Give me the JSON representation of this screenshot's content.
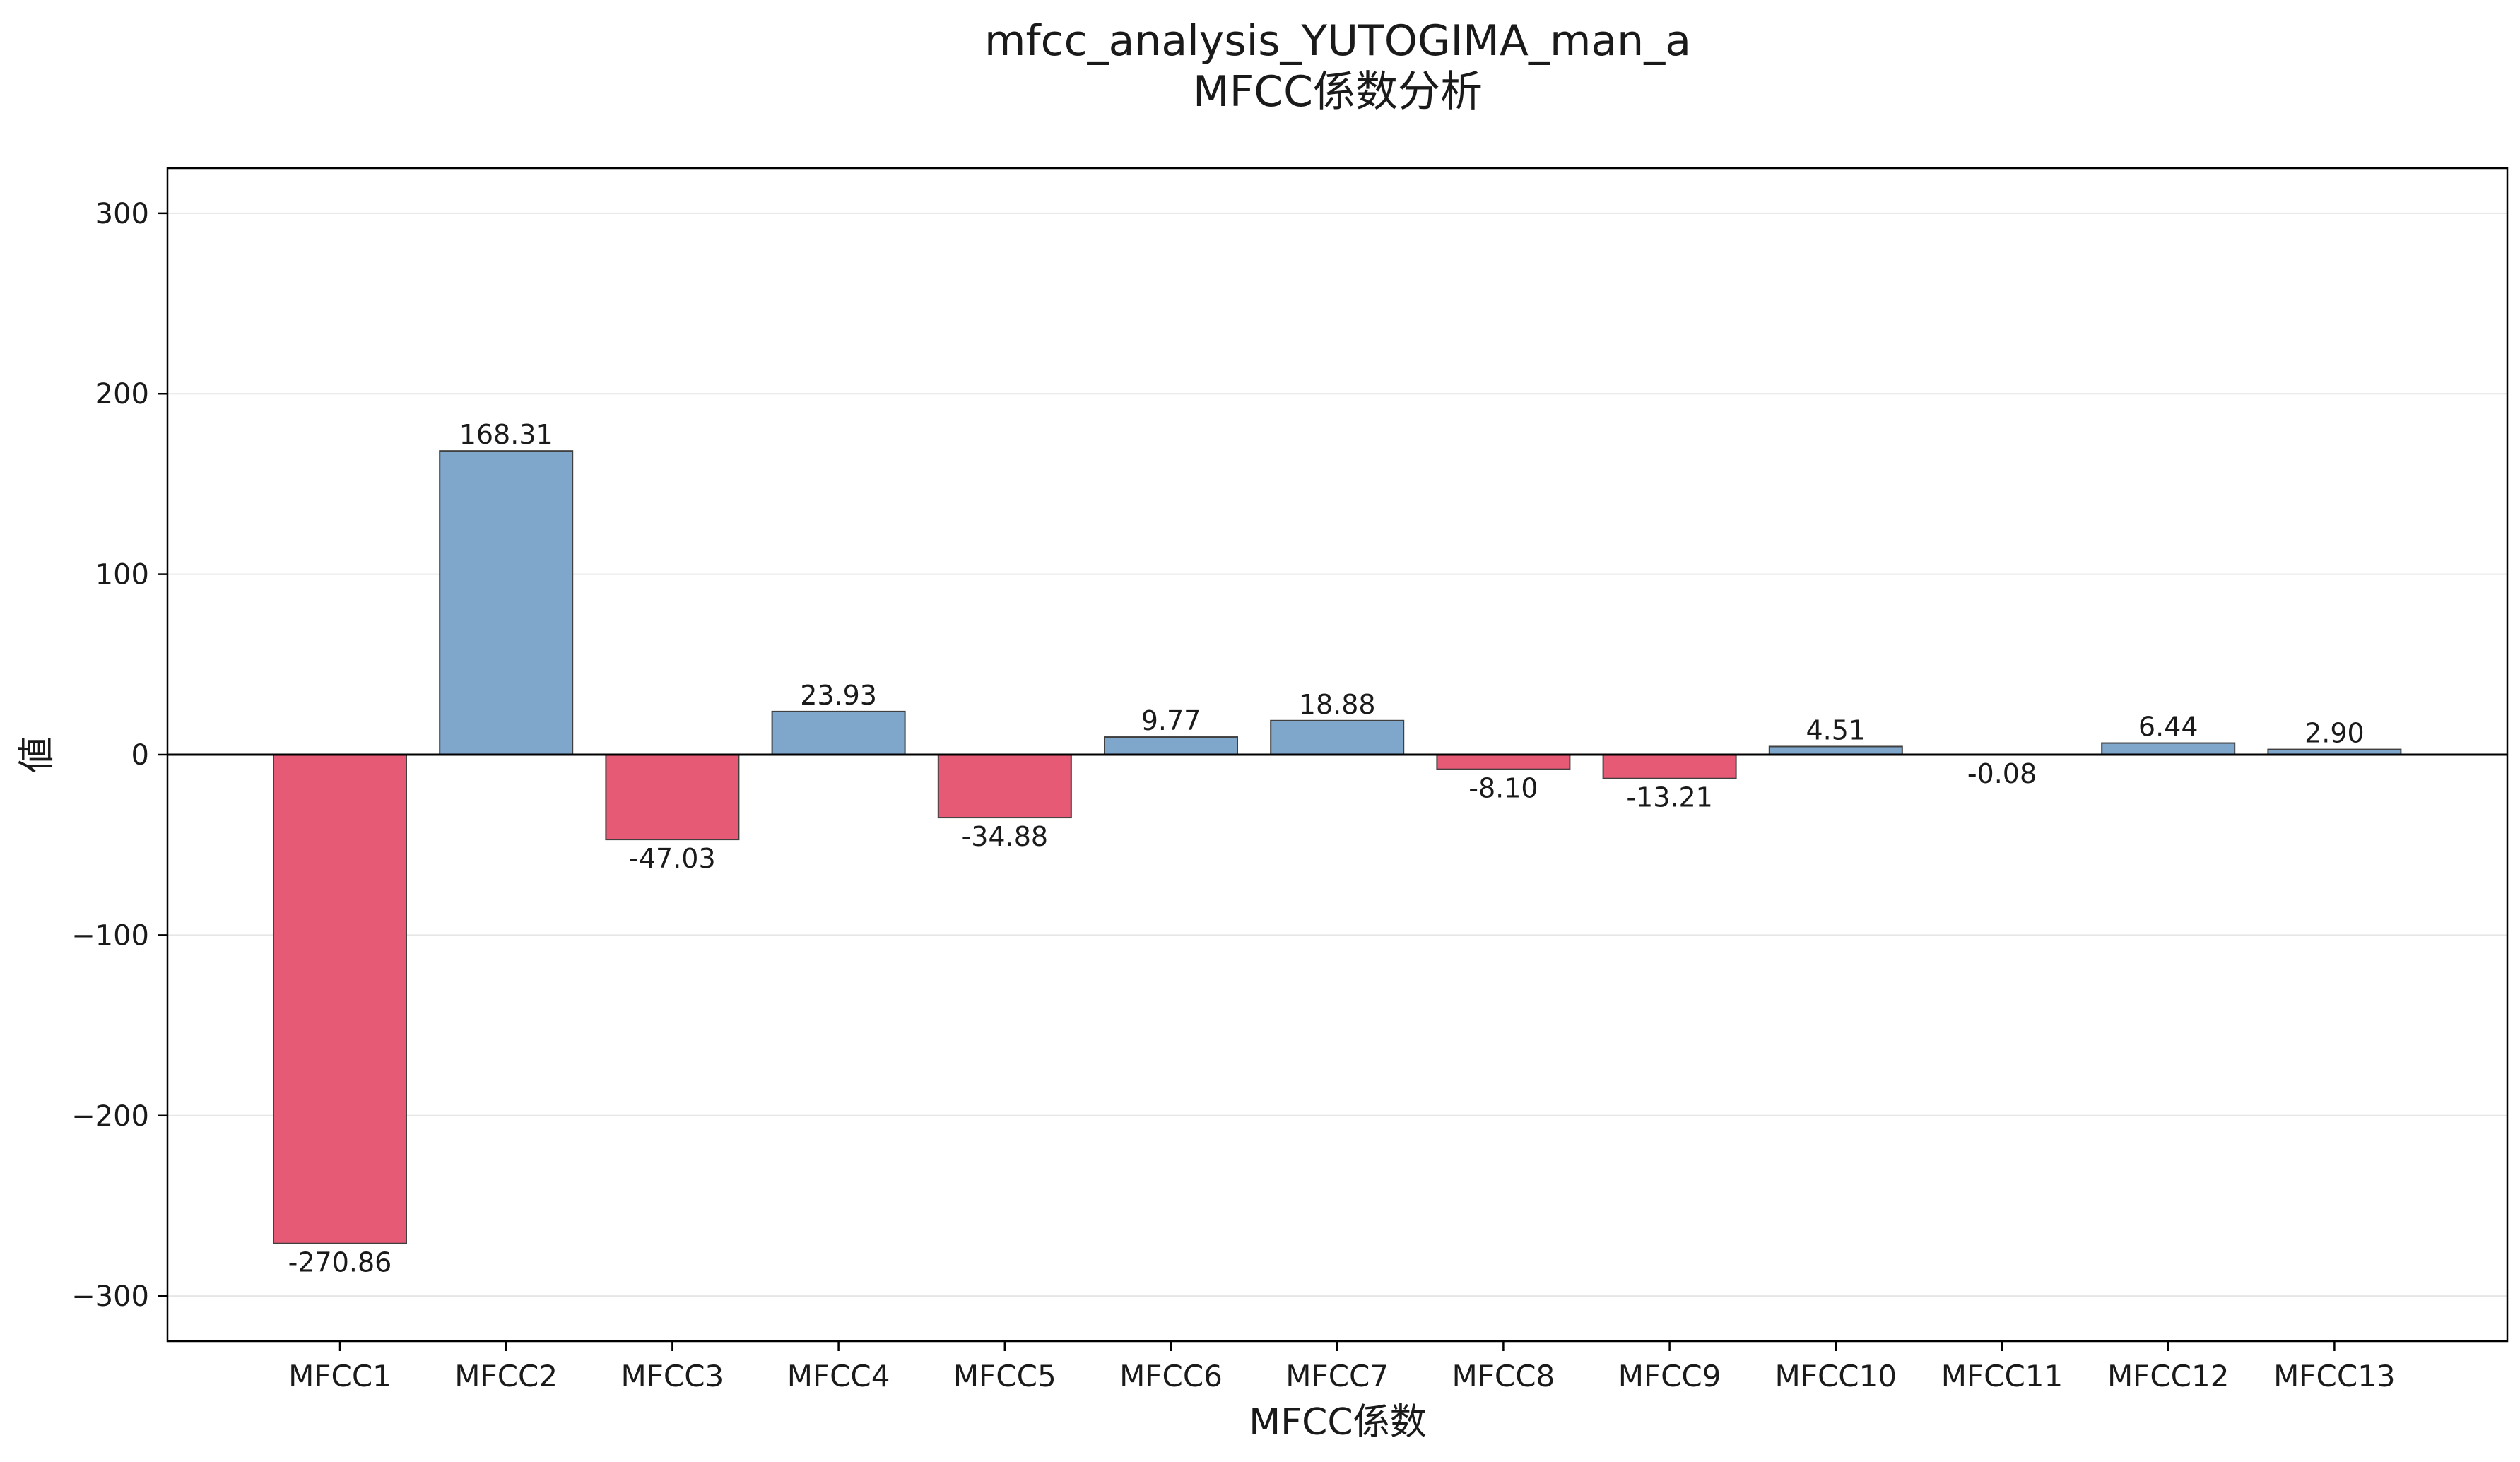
{
  "chart_data": {
    "type": "bar",
    "title": "mfcc_analysis_YUTOGIMA_man_a",
    "subtitle": "MFCC係数分析",
    "xlabel": "MFCC係数",
    "ylabel": "値",
    "ylim": [
      -325,
      325
    ],
    "yticks": [
      300,
      200,
      100,
      0,
      -100,
      -200,
      -300
    ],
    "ytick_labels": [
      "300",
      "200",
      "100",
      "0",
      "−100",
      "−200",
      "−300"
    ],
    "grid": "horizontal",
    "legend": "none",
    "categories": [
      "MFCC1",
      "MFCC2",
      "MFCC3",
      "MFCC4",
      "MFCC5",
      "MFCC6",
      "MFCC7",
      "MFCC8",
      "MFCC9",
      "MFCC10",
      "MFCC11",
      "MFCC12",
      "MFCC13"
    ],
    "values": [
      -270.86,
      168.31,
      -47.03,
      23.93,
      -34.88,
      9.77,
      18.88,
      -8.1,
      -13.21,
      4.51,
      -0.08,
      6.44,
      2.9
    ],
    "value_labels": [
      "-270.86",
      "168.31",
      "-47.03",
      "23.93",
      "-34.88",
      "9.77",
      "18.88",
      "-8.10",
      "-13.21",
      "4.51",
      "-0.08",
      "6.44",
      "2.90"
    ],
    "colors": {
      "positive": "#7ea7cb",
      "negative": "#e65a75",
      "edge": "#404040",
      "grid": "#e6e6e6"
    }
  }
}
